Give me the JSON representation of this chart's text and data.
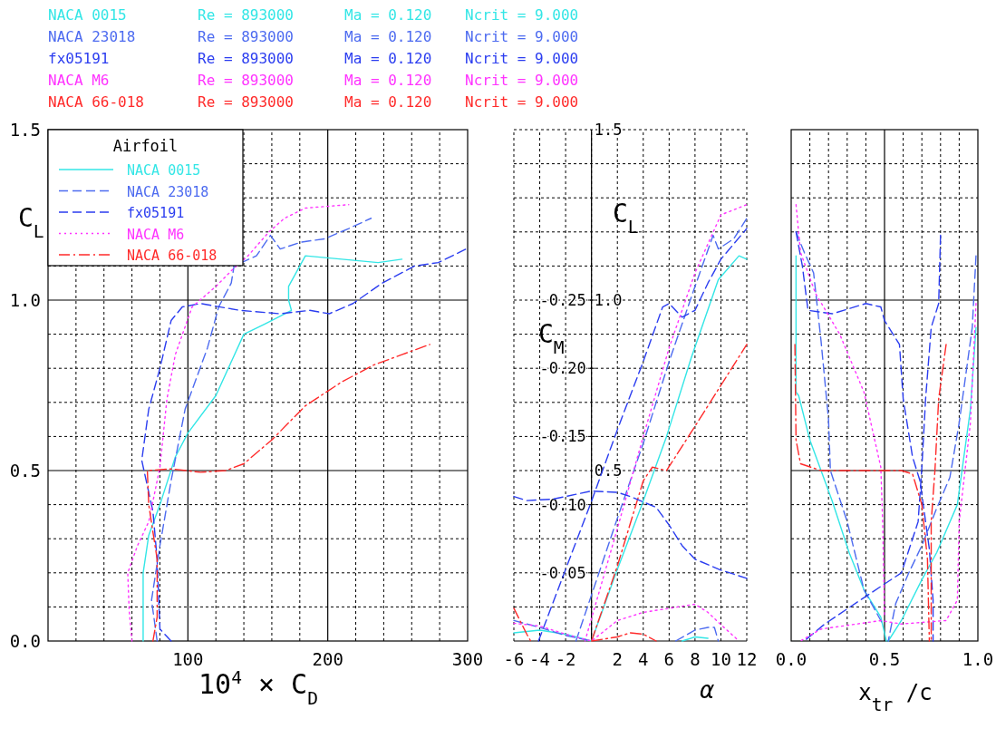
{
  "chart_data": [
    {
      "type": "line",
      "xlabel": "10$^{4}$ × C$_{D}$",
      "ylabel": "C$_{L}$",
      "legend": "top left",
      "legend_title": "Airfoil",
      "grid": true,
      "annotations": [
        "NACA 0015   Re = 893000   Ma = 0.120   Ncrit = 9.000",
        "NACA 23018   Re = 893000   Ma = 0.120   Ncrit = 9.000",
        "fx05191   Re = 893000   Ma = 0.120   Ncrit = 9.000",
        "NACA M6   Re = 893000   Ma = 0.120   Ncrit = 9.000",
        "NACA 66-018   Re = 893000   Ma = 0.120   Ncrit = 9.000"
      ],
      "xlim": [
        0,
        300
      ],
      "ylim": [
        0,
        1.5
      ],
      "xticks": [
        {
          "value": 0,
          "label": null
        },
        {
          "value": 20,
          "label": null
        },
        {
          "value": 40,
          "label": null
        },
        {
          "value": 60,
          "label": null
        },
        {
          "value": 80,
          "label": null
        },
        {
          "value": 100,
          "label": "100"
        },
        {
          "value": 120,
          "label": null
        },
        {
          "value": 140,
          "label": null
        },
        {
          "value": 160,
          "label": null
        },
        {
          "value": 180,
          "label": null
        },
        {
          "value": 200,
          "label": "200"
        },
        {
          "value": 220,
          "label": null
        },
        {
          "value": 240,
          "label": null
        },
        {
          "value": 260,
          "label": null
        },
        {
          "value": 280,
          "label": null
        },
        {
          "value": 300,
          "label": "300"
        }
      ],
      "yticks": [
        {
          "value": 0,
          "label": "0.0"
        },
        {
          "value": 0.1,
          "label": null
        },
        {
          "value": 0.2,
          "label": null
        },
        {
          "value": 0.3,
          "label": null
        },
        {
          "value": 0.4,
          "label": null
        },
        {
          "value": 0.5,
          "label": "0.5"
        },
        {
          "value": 0.6,
          "label": null
        },
        {
          "value": 0.7,
          "label": null
        },
        {
          "value": 0.8,
          "label": null
        },
        {
          "value": 0.9,
          "label": null
        },
        {
          "value": 1,
          "label": "1.0"
        },
        {
          "value": 1.1,
          "label": null
        },
        {
          "value": 1.2,
          "label": null
        },
        {
          "value": 1.3,
          "label": null
        },
        {
          "value": 1.4,
          "label": null
        },
        {
          "value": 1.5,
          "label": "1.5"
        }
      ],
      "series": [
        {
          "name": "NACA 0015",
          "color": "#33e6e6",
          "line_style": "solid",
          "x": [
            68,
            68,
            72,
            80,
            91,
            100,
            120,
            140,
            155,
            174,
            172,
            172,
            184,
            236,
            253
          ],
          "values": [
            0,
            0.2,
            0.31,
            0.4,
            0.54,
            0.61,
            0.72,
            0.9,
            0.93,
            0.97,
            1.0,
            1.04,
            1.13,
            1.11,
            1.12
          ]
        },
        {
          "name": "NACA 23018",
          "color": "#4d6bf0",
          "line_style": "dashed",
          "x": [
            78,
            74,
            80,
            88,
            98,
            114,
            122,
            131,
            133,
            149,
            159,
            166,
            181,
            198,
            215,
            231
          ],
          "values": [
            0,
            0.12,
            0.28,
            0.47,
            0.68,
            0.86,
            0.98,
            1.05,
            1.1,
            1.13,
            1.19,
            1.15,
            1.17,
            1.18,
            1.21,
            1.24
          ]
        },
        {
          "name": "fx05191",
          "color": "#2b3df0",
          "line_style": "dashed",
          "x": [
            88,
            80,
            78,
            75,
            67,
            72,
            80,
            88,
            96,
            109,
            137,
            166,
            187,
            201,
            218,
            239,
            262,
            279,
            299
          ],
          "values": [
            0,
            0.035,
            0.24,
            0.38,
            0.53,
            0.68,
            0.8,
            0.94,
            0.98,
            0.99,
            0.97,
            0.96,
            0.97,
            0.96,
            0.99,
            1.05,
            1.1,
            1.11,
            1.15
          ]
        },
        {
          "name": "NACA M6",
          "color": "#ff33ff",
          "line_style": "dotted",
          "x": [
            60,
            58,
            57,
            64,
            72,
            80,
            85,
            91,
            103,
            120,
            132,
            143,
            158,
            169,
            184,
            215
          ],
          "values": [
            0,
            0.09,
            0.2,
            0.28,
            0.35,
            0.51,
            0.71,
            0.84,
            0.98,
            1.04,
            1.09,
            1.13,
            1.2,
            1.24,
            1.27,
            1.28
          ]
        },
        {
          "name": "NACA 66-018",
          "color": "#ff2a2a",
          "line_style": "dashdot",
          "x": [
            75,
            78,
            78,
            72,
            71,
            88,
            109,
            127,
            140,
            160,
            184,
            210,
            233,
            253,
            273
          ],
          "values": [
            0,
            0.07,
            0.24,
            0.4,
            0.5,
            0.505,
            0.495,
            0.5,
            0.52,
            0.59,
            0.69,
            0.76,
            0.81,
            0.84,
            0.87
          ]
        }
      ]
    },
    {
      "type": "line",
      "xlabel": "α",
      "ylabel": "C$_{L}$",
      "y2label": "C$_{M}$",
      "grid": true,
      "xlim": [
        -6,
        12
      ],
      "xticks": [
        -6,
        -4,
        -2,
        {
          "value": 0,
          "label": null
        },
        2,
        4,
        6,
        8,
        10,
        12
      ],
      "ylim": [
        0,
        1.5
      ],
      "yticks": [
        {
          "value": 0,
          "label": null
        },
        {
          "value": 0.1,
          "label": null
        },
        {
          "value": 0.2,
          "label": null
        },
        {
          "value": 0.3,
          "label": null
        },
        {
          "value": 0.4,
          "label": null
        },
        0.5,
        {
          "value": 0.6,
          "label": null
        },
        {
          "value": 0.7,
          "label": null
        },
        {
          "value": 0.8,
          "label": null
        },
        {
          "value": 0.9,
          "label": null
        },
        {
          "value": 1,
          "label": "1.0"
        },
        {
          "value": 1.1,
          "label": null
        },
        {
          "value": 1.2,
          "label": null
        },
        {
          "value": 1.3,
          "label": null
        },
        {
          "value": 1.4,
          "label": null
        },
        1.5
      ],
      "y2lim": [
        0,
        -0.375
      ],
      "y2ticks": [
        -0.05,
        {
          "value": -0.1,
          "label": "-0.10"
        },
        -0.15,
        {
          "value": -0.2,
          "label": "-0.20"
        },
        -0.25
      ],
      "series": [
        {
          "color": "#33e6e6",
          "line_style": "solid",
          "x": [
            0,
            1.9,
            3.9,
            5.8,
            7.7,
            9.8,
            11.4,
            12
          ],
          "values": [
            0,
            0.2,
            0.4,
            0.6,
            0.83,
            1.06,
            1.13,
            1.12
          ]
        },
        {
          "color": "#4d6bf0",
          "line_style": "dashed",
          "x": [
            -1.2,
            2,
            4,
            6,
            8,
            9.4,
            9.8,
            11,
            12
          ],
          "values": [
            0,
            0.36,
            0.58,
            0.82,
            1.04,
            1.19,
            1.15,
            1.18,
            1.24
          ]
        },
        {
          "color": "#2b3df0",
          "line_style": "dashed",
          "x": [
            -4.1,
            -2,
            0,
            2,
            4,
            5.5,
            6,
            7,
            8,
            9,
            10,
            12
          ],
          "values": [
            0,
            0.21,
            0.41,
            0.62,
            0.82,
            0.98,
            0.99,
            0.95,
            0.97,
            1.05,
            1.12,
            1.21
          ]
        },
        {
          "color": "#ff33ff",
          "line_style": "dotted",
          "x": [
            -0.5,
            2,
            4,
            6,
            8,
            10,
            12
          ],
          "values": [
            0,
            0.33,
            0.6,
            0.86,
            1.08,
            1.25,
            1.28
          ]
        },
        {
          "color": "#ff2a2a",
          "line_style": "dashdot",
          "x": [
            0,
            2,
            4,
            4.7,
            5.8,
            8,
            10,
            12
          ],
          "values": [
            0,
            0.22,
            0.47,
            0.51,
            0.5,
            0.63,
            0.75,
            0.87
          ]
        },
        {
          "color": "#33e6e6",
          "line_style": "solid",
          "axis": "y2",
          "x": [
            -6,
            -4,
            -2,
            0
          ],
          "values": [
            -0.006,
            -0.008,
            -0.005,
            0
          ]
        },
        {
          "color": "#33e6e6",
          "line_style": "solid",
          "axis": "y2",
          "x": [
            7,
            8,
            9
          ],
          "values": [
            0,
            -0.003,
            -0.002
          ]
        },
        {
          "color": "#4d6bf0",
          "line_style": "dashed",
          "axis": "y2",
          "x": [
            -6,
            -4,
            -2,
            0
          ],
          "values": [
            -0.015,
            -0.01,
            -0.004,
            0
          ]
        },
        {
          "color": "#4d6bf0",
          "line_style": "dashed",
          "axis": "y2",
          "x": [
            6.5,
            8,
            9,
            9.5,
            9.8
          ],
          "values": [
            0,
            -0.008,
            -0.01,
            -0.01,
            0
          ]
        },
        {
          "color": "#2b3df0",
          "line_style": "dashed",
          "axis": "y2",
          "x": [
            -6,
            -5,
            -3,
            -1,
            0,
            2,
            3,
            4,
            5,
            6,
            7,
            8,
            10,
            12
          ],
          "values": [
            -0.106,
            -0.103,
            -0.104,
            -0.108,
            -0.11,
            -0.109,
            -0.106,
            -0.102,
            -0.098,
            -0.085,
            -0.07,
            -0.06,
            -0.052,
            -0.046
          ]
        },
        {
          "color": "#ff33ff",
          "line_style": "dotted",
          "axis": "y2",
          "x": [
            -6,
            -4,
            -2,
            0,
            2,
            4,
            6,
            8,
            9,
            10,
            11.4
          ],
          "values": [
            -0.013,
            -0.011,
            -0.005,
            0,
            -0.015,
            -0.021,
            -0.024,
            -0.027,
            -0.021,
            -0.012,
            0
          ]
        },
        {
          "color": "#ff2a2a",
          "line_style": "dashdot",
          "axis": "y2",
          "x": [
            -6,
            -5,
            -4.7
          ],
          "values": [
            -0.024,
            -0.005,
            0
          ]
        },
        {
          "color": "#ff2a2a",
          "line_style": "dashdot",
          "axis": "y2",
          "x": [
            0,
            2,
            3,
            4,
            5
          ],
          "values": [
            0,
            -0.003,
            -0.006,
            -0.005,
            0
          ]
        }
      ]
    },
    {
      "type": "line",
      "xlabel": "x$_{tr}$ /c",
      "grid": true,
      "tick_labels": "x",
      "xlim": [
        0,
        1
      ],
      "xticks": [
        {
          "value": 0,
          "label": "0.0"
        },
        {
          "value": 0.1,
          "label": null
        },
        {
          "value": 0.2,
          "label": null
        },
        {
          "value": 0.3,
          "label": null
        },
        {
          "value": 0.4,
          "label": null
        },
        0.5,
        {
          "value": 0.6,
          "label": null
        },
        {
          "value": 0.7,
          "label": null
        },
        {
          "value": 0.8,
          "label": null
        },
        {
          "value": 0.9,
          "label": null
        },
        {
          "value": 1,
          "label": "1.0"
        }
      ],
      "ylim": [
        0,
        1.5
      ],
      "yticks": [
        {
          "value": 0,
          "label": null
        },
        {
          "value": 0.1,
          "label": null
        },
        {
          "value": 0.2,
          "label": null
        },
        {
          "value": 0.3,
          "label": null
        },
        {
          "value": 0.4,
          "label": null
        },
        {
          "value": 0.5,
          "label": null
        },
        {
          "value": 0.6,
          "label": null
        },
        {
          "value": 0.7,
          "label": null
        },
        {
          "value": 0.8,
          "label": null
        },
        {
          "value": 0.9,
          "label": null
        },
        {
          "value": 1,
          "label": null
        },
        {
          "value": 1.1,
          "label": null
        },
        {
          "value": 1.2,
          "label": null
        },
        {
          "value": 1.3,
          "label": null
        },
        {
          "value": 1.4,
          "label": null
        },
        {
          "value": 1.5,
          "label": null
        }
      ],
      "series": [
        {
          "color": "#33e6e6",
          "line_style": "solid",
          "x": [
            0.026,
            0.026,
            0.04,
            0.1,
            0.16,
            0.22,
            0.31,
            0.39,
            0.48,
            0.51
          ],
          "values": [
            1.13,
            0.73,
            0.72,
            0.59,
            0.5,
            0.41,
            0.26,
            0.15,
            0.07,
            0
          ]
        },
        {
          "color": "#33e6e6",
          "line_style": "solid",
          "x": [
            0.99,
            0.96,
            0.89,
            0.78,
            0.7,
            0.59,
            0.52
          ],
          "values": [
            0.92,
            0.68,
            0.4,
            0.26,
            0.18,
            0.06,
            0
          ]
        },
        {
          "color": "#4d6bf0",
          "line_style": "dashed",
          "x": [
            0.026,
            0.07,
            0.12,
            0.16,
            0.2,
            0.21,
            0.3,
            0.39,
            0.49
          ],
          "values": [
            1.2,
            1.14,
            1.08,
            0.88,
            0.65,
            0.5,
            0.35,
            0.15,
            0.05
          ]
        },
        {
          "color": "#4d6bf0",
          "line_style": "dashed",
          "x": [
            0.99,
            0.97,
            0.9,
            0.85,
            0.78,
            0.7,
            0.63,
            0.56,
            0.52
          ],
          "values": [
            1.13,
            0.92,
            0.64,
            0.48,
            0.39,
            0.28,
            0.2,
            0.11,
            0
          ]
        },
        {
          "color": "#2b3df0",
          "line_style": "dashed",
          "x": [
            0.026,
            0.06,
            0.09,
            0.22,
            0.4,
            0.48,
            0.5,
            0.58,
            0.6,
            0.65,
            0.69,
            0.74,
            0.76,
            0.76
          ],
          "values": [
            1.2,
            1.1,
            0.97,
            0.96,
            0.99,
            0.98,
            0.94,
            0.87,
            0.71,
            0.54,
            0.47,
            0.27,
            0.12,
            0
          ]
        },
        {
          "color": "#2b3df0",
          "line_style": "dashed",
          "x": [
            0.8,
            0.79,
            0.75,
            0.72,
            0.7,
            0.68,
            0.59,
            0.37,
            0.18,
            0.07
          ],
          "values": [
            1.19,
            0.99,
            0.92,
            0.71,
            0.51,
            0.35,
            0.2,
            0.12,
            0.05,
            0
          ]
        },
        {
          "color": "#ff33ff",
          "line_style": "dotted",
          "x": [
            0.026,
            0.05,
            0.13,
            0.26,
            0.39,
            0.48,
            0.49,
            0.5
          ],
          "values": [
            1.28,
            1.14,
            1.02,
            0.9,
            0.73,
            0.51,
            0.35,
            0.07
          ]
        },
        {
          "color": "#ff33ff",
          "line_style": "dotted",
          "x": [
            0.99,
            0.96,
            0.9,
            0.89,
            0.83,
            0.59,
            0.48,
            0.16,
            0.05
          ],
          "values": [
            0.99,
            0.64,
            0.35,
            0.12,
            0.06,
            0.05,
            0.06,
            0.035,
            0
          ]
        },
        {
          "color": "#ff2a2a",
          "line_style": "dashdot",
          "x": [
            0.02,
            0.026,
            0.05,
            0.16,
            0.37,
            0.59,
            0.65,
            0.7,
            0.73,
            0.74
          ],
          "values": [
            0.87,
            0.59,
            0.52,
            0.5,
            0.5,
            0.5,
            0.49,
            0.4,
            0.24,
            0
          ]
        },
        {
          "color": "#ff2a2a",
          "line_style": "dashdot",
          "x": [
            0.83,
            0.79,
            0.77,
            0.75,
            0.75
          ],
          "values": [
            0.87,
            0.71,
            0.5,
            0.35,
            0
          ]
        }
      ]
    }
  ]
}
